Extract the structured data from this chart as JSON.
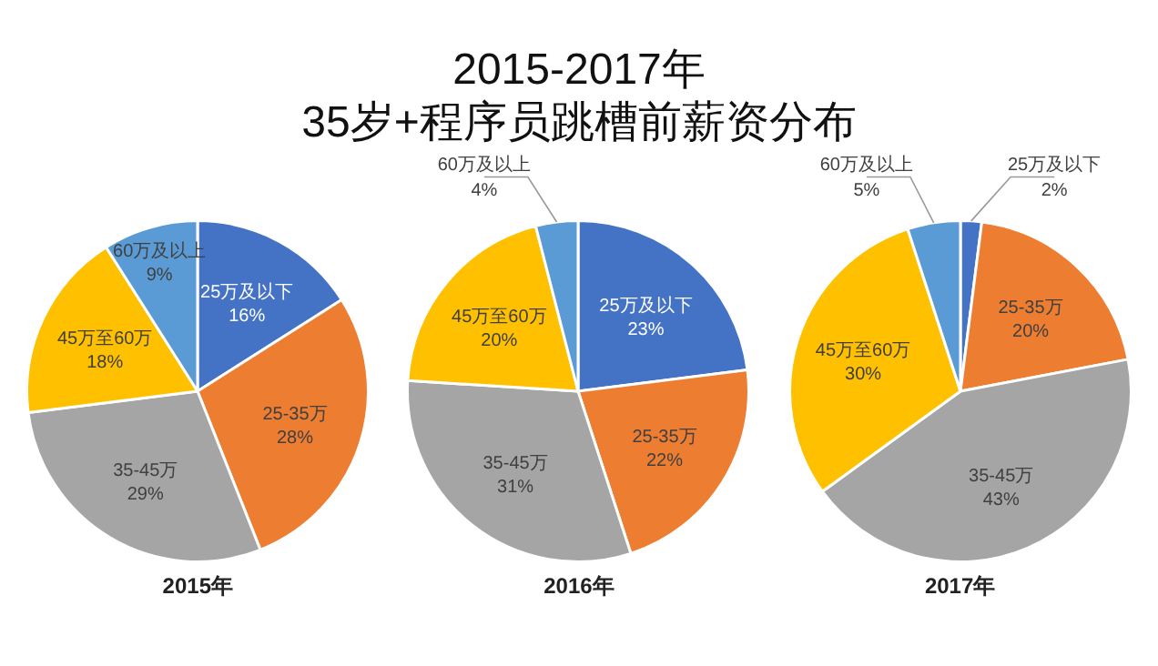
{
  "chart_data": [
    {
      "type": "other",
      "title": "2015-2017年",
      "subtitle": "35岁+程序员跳槽前薪资分布"
    },
    {
      "type": "pie",
      "xlabel": "2015年",
      "categories": [
        "25万及以下",
        "25-35万",
        "35-45万",
        "45万至60万",
        "60万及以上"
      ],
      "values": [
        16,
        28,
        29,
        18,
        9
      ],
      "value_labels": [
        "16%",
        "28%",
        "29%",
        "18%",
        "9%"
      ],
      "colors": [
        "#4472c4",
        "#ed7d31",
        "#a5a5a5",
        "#ffc000",
        "#5b9bd5"
      ]
    },
    {
      "type": "pie",
      "xlabel": "2016年",
      "categories": [
        "25万及以下",
        "25-35万",
        "35-45万",
        "45万至60万",
        "60万及以上"
      ],
      "values": [
        23,
        22,
        31,
        20,
        4
      ],
      "value_labels": [
        "23%",
        "22%",
        "31%",
        "20%",
        "4%"
      ],
      "colors": [
        "#4472c4",
        "#ed7d31",
        "#a5a5a5",
        "#ffc000",
        "#5b9bd5"
      ]
    },
    {
      "type": "pie",
      "xlabel": "2017年",
      "categories": [
        "25万及以下",
        "25-35万",
        "35-45万",
        "45万至60万",
        "60万及以上"
      ],
      "values": [
        2,
        20,
        43,
        30,
        5
      ],
      "value_labels": [
        "2%",
        "20%",
        "43%",
        "30%",
        "5%"
      ],
      "colors": [
        "#4472c4",
        "#ed7d31",
        "#a5a5a5",
        "#ffc000",
        "#5b9bd5"
      ]
    }
  ]
}
